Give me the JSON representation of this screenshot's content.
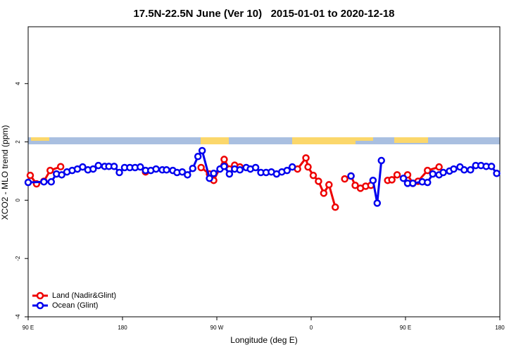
{
  "chart_data": {
    "type": "line",
    "title": "17.5N-22.5N June (Ver 10)   2015-01-01 to 2020-12-18",
    "x_label": "Longitude (deg E)",
    "y_label": "XCO2 - MLO trend (ppm)",
    "xlim": [
      -270,
      180
    ],
    "xticks": [
      {
        "value": -270,
        "label": "90 E"
      },
      {
        "value": -180,
        "label": "180"
      },
      {
        "value": -90,
        "label": "90 W"
      },
      0,
      {
        "value": 90,
        "label": "90 E"
      },
      {
        "value": 180,
        "label": "180"
      }
    ],
    "ylim": [
      -4,
      5.95
    ],
    "yticks": [
      -4,
      -2,
      0,
      2,
      4
    ],
    "legend": "bottom-left",
    "series": [
      {
        "name": "Land (Nadir&Glint)",
        "color": "#ee0000",
        "x": [
          -268,
          -262,
          -255,
          -249,
          -239,
          null,
          -158,
          null,
          -105,
          -97,
          -93,
          -83,
          -78,
          -73,
          -68,
          null,
          -13,
          -5,
          -3,
          2,
          7,
          12,
          17,
          23,
          null,
          32,
          38,
          42,
          47,
          52,
          57,
          null,
          73,
          77,
          82,
          null,
          92,
          97,
          102,
          111,
          122
        ],
        "values": [
          0.85,
          0.56,
          0.65,
          1.02,
          1.15,
          null,
          0.97,
          null,
          1.12,
          0.9,
          0.68,
          1.4,
          1.07,
          1.2,
          1.14,
          null,
          1.07,
          1.45,
          1.14,
          0.85,
          0.65,
          0.24,
          0.53,
          -0.24,
          null,
          0.73,
          0.83,
          0.51,
          0.41,
          0.48,
          0.51,
          null,
          0.68,
          0.7,
          0.87,
          null,
          0.87,
          0.58,
          0.65,
          1.02,
          1.14
        ]
      },
      {
        "name": "Ocean (Glint)",
        "color": "#0000ee",
        "x": [
          -270,
          -255,
          -248,
          -243,
          -238,
          -233,
          -228,
          -223,
          -218,
          -213,
          -208,
          -203,
          -197,
          -193,
          -188,
          -183,
          -178,
          -173,
          -168,
          -163,
          -158,
          -153,
          -148,
          -142,
          -138,
          -132,
          -128,
          -123,
          -118,
          -113,
          -108,
          -104,
          -97,
          -93,
          -87,
          -83,
          -78,
          -73,
          -68,
          -62,
          -58,
          -53,
          -48,
          -43,
          -38,
          -33,
          -28,
          -23,
          -18,
          null,
          38,
          null,
          59,
          63,
          67,
          null,
          88,
          92,
          97,
          106,
          111,
          116,
          122,
          126,
          132,
          136,
          142,
          146,
          152,
          157,
          162,
          167,
          172,
          177
        ],
        "values": [
          0.61,
          0.63,
          0.63,
          0.9,
          0.87,
          0.97,
          1.02,
          1.07,
          1.14,
          1.04,
          1.07,
          1.19,
          1.16,
          1.16,
          1.16,
          0.95,
          1.12,
          1.12,
          1.12,
          1.14,
          1.02,
          1.02,
          1.07,
          1.04,
          1.04,
          1.02,
          0.95,
          0.97,
          0.87,
          1.09,
          1.5,
          1.7,
          0.75,
          0.92,
          1.07,
          1.16,
          0.9,
          1.07,
          1.04,
          1.12,
          1.07,
          1.12,
          0.95,
          0.95,
          0.97,
          0.9,
          0.97,
          1.02,
          1.14,
          null,
          0.83,
          null,
          0.68,
          -0.1,
          1.36,
          null,
          0.75,
          0.58,
          0.58,
          0.63,
          0.61,
          0.9,
          0.87,
          0.95,
          1.0,
          1.07,
          1.14,
          1.04,
          1.04,
          1.19,
          1.19,
          1.16,
          1.16,
          0.92
        ]
      }
    ]
  }
}
